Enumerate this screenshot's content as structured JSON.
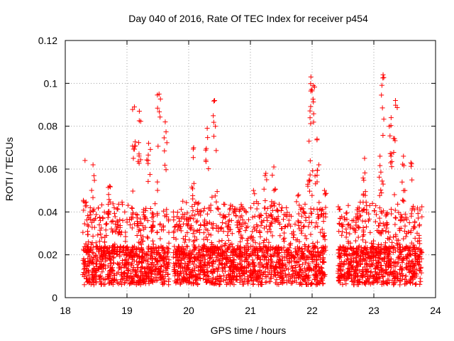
{
  "chart_data": {
    "type": "scatter",
    "title": "Day 040 of 2016, Rate Of TEC Index for receiver p454",
    "xlabel": "GPS time / hours",
    "ylabel": "ROTI / TECUs",
    "xlim": [
      18,
      24
    ],
    "ylim": [
      0,
      0.12
    ],
    "grid": true,
    "marker": "plus",
    "series_color": "#ff0000",
    "x_ticks": [
      18,
      19,
      20,
      21,
      22,
      23,
      24
    ],
    "x_tick_labels": [
      "18",
      "19",
      "20",
      "21",
      "22",
      "23",
      "24"
    ],
    "y_ticks": [
      0,
      0.02,
      0.04,
      0.06,
      0.08,
      0.1,
      0.12
    ],
    "y_tick_labels": [
      "0",
      "0.02",
      "0.04",
      "0.06",
      "0.08",
      "0.1",
      "0.12"
    ],
    "data_ranges": [
      [
        18.28,
        19.68
      ],
      [
        19.75,
        22.22
      ],
      [
        22.42,
        23.78
      ]
    ],
    "peaks": [
      {
        "x": 18.32,
        "y": 0.064
      },
      {
        "x": 18.45,
        "y": 0.062
      },
      {
        "x": 18.72,
        "y": 0.052
      },
      {
        "x": 19.12,
        "y": 0.089
      },
      {
        "x": 19.2,
        "y": 0.087
      },
      {
        "x": 19.35,
        "y": 0.072
      },
      {
        "x": 19.52,
        "y": 0.095
      },
      {
        "x": 19.62,
        "y": 0.082
      },
      {
        "x": 20.08,
        "y": 0.07
      },
      {
        "x": 20.3,
        "y": 0.079
      },
      {
        "x": 20.42,
        "y": 0.092
      },
      {
        "x": 21.05,
        "y": 0.05
      },
      {
        "x": 21.25,
        "y": 0.058
      },
      {
        "x": 21.38,
        "y": 0.061
      },
      {
        "x": 21.78,
        "y": 0.048
      },
      {
        "x": 21.95,
        "y": 0.073
      },
      {
        "x": 21.98,
        "y": 0.103
      },
      {
        "x": 22.02,
        "y": 0.099
      },
      {
        "x": 22.08,
        "y": 0.074
      },
      {
        "x": 22.2,
        "y": 0.05
      },
      {
        "x": 22.85,
        "y": 0.065
      },
      {
        "x": 23.1,
        "y": 0.066
      },
      {
        "x": 23.15,
        "y": 0.104
      },
      {
        "x": 23.28,
        "y": 0.084
      },
      {
        "x": 23.35,
        "y": 0.092
      },
      {
        "x": 23.48,
        "y": 0.066
      },
      {
        "x": 23.6,
        "y": 0.063
      }
    ]
  }
}
